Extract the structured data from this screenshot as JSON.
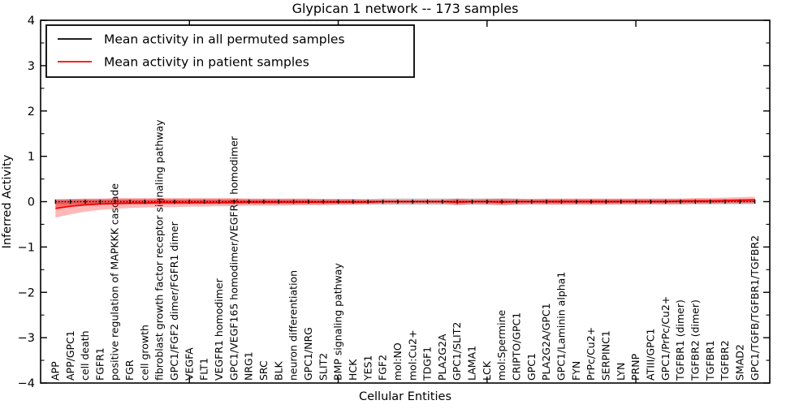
{
  "title": "Glypican 1 network -- 173 samples",
  "chart_data": {
    "type": "line",
    "title": "Glypican 1 network -- 173 samples",
    "xlabel": "Cellular Entities",
    "ylabel": "Inferred Activity",
    "ylim": [
      -4,
      4
    ],
    "xlim": [
      0,
      49
    ],
    "yticks": [
      4,
      3,
      2,
      1,
      0,
      -1,
      -2,
      -3,
      -4
    ],
    "ytick_labels": [
      "4",
      "3",
      "2",
      "1",
      "0",
      "−1",
      "−2",
      "−3",
      "−4"
    ],
    "y_minor_step": 0.5,
    "xticks": [
      10,
      20,
      30,
      40
    ],
    "grid": false,
    "legend_position": "upper-left",
    "categories": [
      "APP",
      "APP/GPC1",
      "cell death",
      "FGFR1",
      "positive regulation of MAPKKK cascade",
      "FGR",
      "cell growth",
      "fibroblast growth factor receptor signaling pathway",
      "GPC1/FGF2 dimer/FGFR1 dimer",
      "VEGFA",
      "FLT1",
      "VEGFR1 homodimer",
      "GPC1/VEGF165 homodimer/VEGFR1 homodimer",
      "NRG1",
      "SRC",
      "BLK",
      "neuron differentiation",
      "GPC1/NRG",
      "SLIT2",
      "BMP signaling pathway",
      "HCK",
      "YES1",
      "FGF2",
      "mol:NO",
      "mol:Cu2+",
      "TDGF1",
      "PLA2G2A",
      "GPC1/SLIT2",
      "LAMA1",
      "LCK",
      "mol:Spermine",
      "CRIPTO/GPC1",
      "GPC1",
      "PLA2G2A/GPC1",
      "GPC1/Laminin alpha1",
      "FYN",
      "PrPc/Cu2+",
      "SERPINC1",
      "LYN",
      "PRNP",
      "ATIII/GPC1",
      "GPC1/PrPc/Cu2+",
      "TGFBR1 (dimer)",
      "TGFBR2 (dimer)",
      "TGFBR1",
      "TGFBR2",
      "SMAD2",
      "GPC1/TGFB/TGFBR1/TGFBR2"
    ],
    "series": [
      {
        "name": "Mean activity in all permuted samples",
        "color": "#000000",
        "line_style": "dotted-with-tick-markers",
        "values": [
          0,
          0,
          0,
          0,
          0,
          0,
          0,
          0,
          0,
          0,
          0,
          0,
          0,
          0,
          0,
          0,
          0,
          0,
          0,
          0,
          0,
          0,
          0,
          0,
          0,
          0,
          0,
          0,
          0,
          0,
          0,
          0,
          0,
          0,
          0,
          0,
          0,
          0,
          0,
          0,
          0,
          0,
          0,
          0,
          0,
          0,
          0,
          0
        ],
        "band_lower": [
          -0.055,
          -0.055,
          -0.055,
          -0.055,
          -0.055,
          -0.055,
          -0.055,
          -0.055,
          -0.055,
          -0.055,
          -0.055,
          -0.055,
          -0.055,
          -0.055,
          -0.055,
          -0.055,
          -0.055,
          -0.055,
          -0.055,
          -0.055,
          -0.055,
          -0.055,
          -0.07,
          -0.07,
          -0.07,
          -0.07,
          -0.07,
          -0.07,
          -0.07,
          -0.07,
          -0.07,
          -0.07,
          -0.055,
          -0.055,
          -0.055,
          -0.055,
          -0.055,
          -0.055,
          -0.055,
          -0.055,
          -0.055,
          -0.055,
          -0.055,
          -0.055,
          -0.055,
          -0.055,
          -0.055,
          -0.055
        ],
        "band_upper": [
          0.055,
          0.055,
          0.055,
          0.055,
          0.055,
          0.055,
          0.055,
          0.055,
          0.055,
          0.055,
          0.055,
          0.055,
          0.055,
          0.055,
          0.055,
          0.055,
          0.055,
          0.055,
          0.055,
          0.055,
          0.055,
          0.055,
          0.07,
          0.07,
          0.07,
          0.07,
          0.07,
          0.07,
          0.07,
          0.07,
          0.07,
          0.07,
          0.055,
          0.055,
          0.055,
          0.055,
          0.055,
          0.055,
          0.055,
          0.055,
          0.055,
          0.055,
          0.055,
          0.055,
          0.055,
          0.055,
          0.055,
          0.055
        ],
        "band_color": "rgba(128,128,128,0.45)"
      },
      {
        "name": "Mean activity in patient samples",
        "color": "#ff0000",
        "line_style": "solid",
        "values": [
          -0.15,
          -0.1,
          -0.07,
          -0.05,
          -0.04,
          -0.03,
          -0.03,
          -0.02,
          -0.02,
          -0.02,
          -0.02,
          -0.02,
          -0.02,
          -0.01,
          -0.01,
          -0.01,
          -0.01,
          -0.01,
          -0.01,
          -0.01,
          -0.01,
          -0.01,
          0,
          0,
          0,
          0,
          0,
          -0.01,
          0,
          0,
          -0.01,
          0,
          0,
          0,
          0,
          0,
          0,
          0,
          0,
          0,
          0,
          0,
          0.01,
          0.01,
          0.01,
          0.02,
          0.03,
          0.04
        ],
        "band_lower": [
          -0.35,
          -0.28,
          -0.22,
          -0.18,
          -0.16,
          -0.14,
          -0.13,
          -0.12,
          -0.12,
          -0.11,
          -0.11,
          -0.1,
          -0.1,
          -0.09,
          -0.09,
          -0.09,
          -0.08,
          -0.08,
          -0.08,
          -0.07,
          -0.07,
          -0.06,
          -0.04,
          -0.04,
          -0.04,
          -0.04,
          -0.04,
          -0.08,
          -0.05,
          -0.06,
          -0.08,
          -0.06,
          -0.06,
          -0.07,
          -0.07,
          -0.07,
          -0.07,
          -0.07,
          -0.06,
          -0.06,
          -0.06,
          -0.06,
          -0.06,
          -0.05,
          -0.05,
          -0.04,
          -0.04,
          -0.03
        ],
        "band_upper": [
          0.05,
          0.06,
          0.07,
          0.07,
          0.08,
          0.08,
          0.08,
          0.08,
          0.08,
          0.08,
          0.08,
          0.08,
          0.08,
          0.07,
          0.07,
          0.07,
          0.07,
          0.07,
          0.06,
          0.06,
          0.06,
          0.05,
          0.04,
          0.04,
          0.04,
          0.04,
          0.04,
          0.07,
          0.05,
          0.06,
          0.07,
          0.06,
          0.06,
          0.07,
          0.07,
          0.07,
          0.07,
          0.07,
          0.07,
          0.07,
          0.07,
          0.07,
          0.07,
          0.08,
          0.08,
          0.09,
          0.1,
          0.11
        ],
        "band_color": "rgba(255,0,0,0.28)",
        "band_inner_color": "rgba(255,0,0,0.38)"
      }
    ]
  },
  "legend": {
    "entries": [
      {
        "label": "Mean activity in all permuted samples",
        "color": "#000000"
      },
      {
        "label": "Mean activity in patient samples",
        "color": "#ff0000"
      }
    ]
  },
  "colors": {
    "background": "#ffffff",
    "axis": "#000000",
    "patient_line": "#ff0000",
    "permuted_line": "#000000"
  }
}
